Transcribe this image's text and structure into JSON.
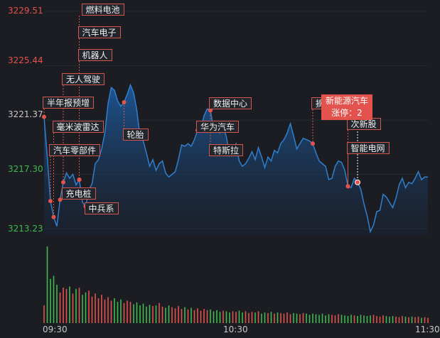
{
  "chart_data": {
    "type": "area",
    "y_axis": {
      "ticks": [
        {
          "label": "3229.51",
          "value": 3229.51,
          "color": "#e3524d"
        },
        {
          "label": "3225.44",
          "value": 3225.44,
          "color": "#e3524d"
        },
        {
          "label": "3221.37",
          "value": 3221.37,
          "color": "#c8c8c8"
        },
        {
          "label": "3217.30",
          "value": 3217.3,
          "color": "#3fb950"
        },
        {
          "label": "3213.23",
          "value": 3213.23,
          "color": "#3fb950"
        }
      ],
      "ylim": [
        3213.23,
        3229.51
      ]
    },
    "x_axis": {
      "ticks": [
        {
          "label": "09:30",
          "minute": 0
        },
        {
          "label": "10:30",
          "minute": 60
        },
        {
          "label": "11:30",
          "minute": 120
        }
      ],
      "xlim": [
        0,
        120
      ]
    },
    "price_series": [
      [
        0,
        3221.6
      ],
      [
        1,
        3218.6
      ],
      [
        2,
        3215.3
      ],
      [
        3,
        3214.1
      ],
      [
        4,
        3213.4
      ],
      [
        5,
        3215.4
      ],
      [
        6,
        3216.7
      ],
      [
        7,
        3217.4
      ],
      [
        8,
        3217.0
      ],
      [
        9,
        3217.3
      ],
      [
        10,
        3216.5
      ],
      [
        11,
        3216.9
      ],
      [
        12,
        3215.2
      ],
      [
        13,
        3214.9
      ],
      [
        14,
        3216.1
      ],
      [
        15,
        3216.6
      ],
      [
        16,
        3218.1
      ],
      [
        17,
        3218.4
      ],
      [
        18,
        3219.2
      ],
      [
        19,
        3220.4
      ],
      [
        20,
        3222.6
      ],
      [
        21,
        3223.8
      ],
      [
        22,
        3223.6
      ],
      [
        23,
        3222.8
      ],
      [
        24,
        3222.4
      ],
      [
        25,
        3222.7
      ],
      [
        26,
        3223.3
      ],
      [
        27,
        3224.0
      ],
      [
        28,
        3223.4
      ],
      [
        29,
        3222.1
      ],
      [
        30,
        3220.1
      ],
      [
        31,
        3219.8
      ],
      [
        32,
        3218.9
      ],
      [
        33,
        3217.9
      ],
      [
        34,
        3218.4
      ],
      [
        35,
        3217.6
      ],
      [
        36,
        3218.1
      ],
      [
        37,
        3218.3
      ],
      [
        38,
        3217.4
      ],
      [
        39,
        3217.1
      ],
      [
        40,
        3217.3
      ],
      [
        41,
        3217.5
      ],
      [
        42,
        3218.4
      ],
      [
        43,
        3219.5
      ],
      [
        44,
        3219.4
      ],
      [
        45,
        3219.6
      ],
      [
        46,
        3219.4
      ],
      [
        47,
        3219.9
      ],
      [
        48,
        3220.6
      ],
      [
        49,
        3220.6
      ],
      [
        50,
        3221.7
      ],
      [
        51,
        3222.2
      ],
      [
        52,
        3222.1
      ],
      [
        53,
        3220.7
      ],
      [
        54,
        3220.5
      ],
      [
        55,
        3220.4
      ],
      [
        56,
        3220.9
      ],
      [
        57,
        3220.1
      ],
      [
        58,
        3218.7
      ],
      [
        59,
        3219.2
      ],
      [
        60,
        3219.6
      ],
      [
        61,
        3218.3
      ],
      [
        62,
        3217.9
      ],
      [
        63,
        3218.1
      ],
      [
        64,
        3218.5
      ],
      [
        65,
        3219.0
      ],
      [
        66,
        3218.4
      ],
      [
        67,
        3219.3
      ],
      [
        68,
        3218.6
      ],
      [
        69,
        3217.8
      ],
      [
        70,
        3218.6
      ],
      [
        71,
        3218.3
      ],
      [
        72,
        3219.1
      ],
      [
        73,
        3218.9
      ],
      [
        74,
        3219.6
      ],
      [
        75,
        3219.9
      ],
      [
        76,
        3220.4
      ],
      [
        77,
        3221.1
      ],
      [
        78,
        3220.2
      ],
      [
        79,
        3219.2
      ],
      [
        80,
        3219.6
      ],
      [
        81,
        3220.0
      ],
      [
        82,
        3219.9
      ],
      [
        83,
        3219.8
      ],
      [
        84,
        3219.6
      ],
      [
        85,
        3218.9
      ],
      [
        86,
        3218.3
      ],
      [
        87,
        3218.1
      ],
      [
        88,
        3217.9
      ],
      [
        89,
        3216.9
      ],
      [
        90,
        3217.0
      ],
      [
        91,
        3217.9
      ],
      [
        92,
        3218.3
      ],
      [
        93,
        3218.2
      ],
      [
        94,
        3217.6
      ],
      [
        95,
        3216.4
      ],
      [
        96,
        3216.3
      ],
      [
        97,
        3217.0
      ],
      [
        98,
        3216.7
      ],
      [
        99,
        3216.2
      ],
      [
        100,
        3215.1
      ],
      [
        101,
        3214.2
      ],
      [
        102,
        3213.0
      ],
      [
        103,
        3213.5
      ],
      [
        104,
        3214.5
      ],
      [
        105,
        3214.6
      ],
      [
        106,
        3215.8
      ],
      [
        107,
        3215.6
      ],
      [
        108,
        3215.2
      ],
      [
        109,
        3214.8
      ],
      [
        110,
        3215.5
      ],
      [
        111,
        3216.5
      ],
      [
        112,
        3217.0
      ],
      [
        113,
        3216.3
      ],
      [
        114,
        3216.7
      ],
      [
        115,
        3216.6
      ],
      [
        116,
        3217.0
      ],
      [
        117,
        3217.5
      ],
      [
        118,
        3216.9
      ],
      [
        119,
        3217.1
      ],
      [
        120,
        3217.1
      ]
    ],
    "volume_series": [
      [
        0,
        30
      ],
      [
        1,
        130
      ],
      [
        2,
        75
      ],
      [
        3,
        80
      ],
      [
        4,
        65
      ],
      [
        5,
        52
      ],
      [
        6,
        60
      ],
      [
        7,
        58
      ],
      [
        8,
        62
      ],
      [
        9,
        50
      ],
      [
        10,
        58
      ],
      [
        11,
        60
      ],
      [
        12,
        48
      ],
      [
        13,
        52
      ],
      [
        14,
        55
      ],
      [
        15,
        45
      ],
      [
        16,
        50
      ],
      [
        17,
        42
      ],
      [
        18,
        48
      ],
      [
        19,
        40
      ],
      [
        20,
        44
      ],
      [
        21,
        38
      ],
      [
        22,
        42
      ],
      [
        23,
        36
      ],
      [
        24,
        40
      ],
      [
        25,
        34
      ],
      [
        26,
        38
      ],
      [
        27,
        36
      ],
      [
        28,
        32
      ],
      [
        29,
        35
      ],
      [
        30,
        30
      ],
      [
        31,
        33
      ],
      [
        32,
        28
      ],
      [
        33,
        31
      ],
      [
        34,
        29
      ],
      [
        35,
        30
      ],
      [
        36,
        34
      ],
      [
        37,
        28
      ],
      [
        38,
        26
      ],
      [
        39,
        30
      ],
      [
        40,
        27
      ],
      [
        41,
        25
      ],
      [
        42,
        29
      ],
      [
        43,
        24
      ],
      [
        44,
        27
      ],
      [
        45,
        23
      ],
      [
        46,
        26
      ],
      [
        47,
        22
      ],
      [
        48,
        25
      ],
      [
        49,
        21
      ],
      [
        50,
        24
      ],
      [
        51,
        22
      ],
      [
        52,
        23
      ],
      [
        53,
        20
      ],
      [
        54,
        22
      ],
      [
        55,
        19
      ],
      [
        56,
        21
      ],
      [
        57,
        20
      ],
      [
        58,
        18
      ],
      [
        59,
        20
      ],
      [
        60,
        19
      ],
      [
        61,
        21
      ],
      [
        62,
        18
      ],
      [
        63,
        20
      ],
      [
        64,
        17
      ],
      [
        65,
        19
      ],
      [
        66,
        18
      ],
      [
        67,
        20
      ],
      [
        68,
        16
      ],
      [
        69,
        18
      ],
      [
        70,
        17
      ],
      [
        71,
        19
      ],
      [
        72,
        16
      ],
      [
        73,
        18
      ],
      [
        74,
        17
      ],
      [
        75,
        16
      ],
      [
        76,
        18
      ],
      [
        77,
        15
      ],
      [
        78,
        17
      ],
      [
        79,
        16
      ],
      [
        80,
        15
      ],
      [
        81,
        17
      ],
      [
        82,
        16
      ],
      [
        83,
        14
      ],
      [
        84,
        16
      ],
      [
        85,
        15
      ],
      [
        86,
        14
      ],
      [
        87,
        16
      ],
      [
        88,
        13
      ],
      [
        89,
        15
      ],
      [
        90,
        14
      ],
      [
        91,
        13
      ],
      [
        92,
        15
      ],
      [
        93,
        14
      ],
      [
        94,
        13
      ],
      [
        95,
        12
      ],
      [
        96,
        14
      ],
      [
        97,
        13
      ],
      [
        98,
        12
      ],
      [
        99,
        14
      ],
      [
        100,
        13
      ],
      [
        101,
        12
      ],
      [
        102,
        13
      ],
      [
        103,
        14
      ],
      [
        104,
        12
      ],
      [
        105,
        11
      ],
      [
        106,
        13
      ],
      [
        107,
        12
      ],
      [
        108,
        11
      ],
      [
        109,
        12
      ],
      [
        110,
        11
      ],
      [
        111,
        10
      ],
      [
        112,
        12
      ],
      [
        113,
        11
      ],
      [
        114,
        10
      ],
      [
        115,
        11
      ],
      [
        116,
        10
      ],
      [
        117,
        11
      ],
      [
        118,
        9
      ],
      [
        119,
        10
      ],
      [
        120,
        9
      ]
    ],
    "volume_colors": {
      "up": "#e3524d",
      "down": "#3fb950"
    },
    "line_color": "#2f7fce",
    "markers": [
      {
        "label": "燃料电池",
        "minute": 11
      },
      {
        "label": "汽车电子",
        "minute": 11
      },
      {
        "label": "机器人",
        "minute": 11
      },
      {
        "label": "无人驾驶",
        "minute": 6
      },
      {
        "label": "半年报预增",
        "minute": 0
      },
      {
        "label": "毫米波雷达",
        "minute": 3
      },
      {
        "label": "汽车零部件",
        "minute": 2
      },
      {
        "label": "充电桩",
        "minute": 5
      },
      {
        "label": "中兵系",
        "minute": 13
      },
      {
        "label": "轮胎",
        "minute": 25
      },
      {
        "label": "华为汽车",
        "minute": 48
      },
      {
        "label": "特斯拉",
        "minute": 52
      },
      {
        "label": "数据中心",
        "minute": 52
      },
      {
        "label": "摘帽",
        "minute": 84
      },
      {
        "label": "次新股",
        "minute": 95
      },
      {
        "label": "智能电网",
        "minute": 95
      }
    ],
    "highlight_marker": {
      "title": "新能源汽车",
      "subtitle": "涨停：2",
      "minute": 98
    }
  }
}
